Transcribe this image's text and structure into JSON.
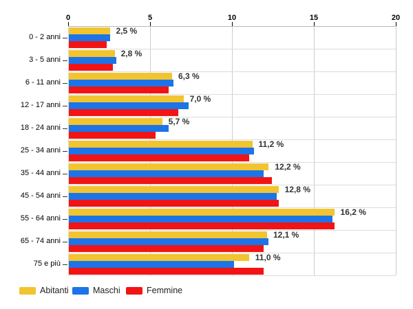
{
  "chart_data": {
    "type": "bar",
    "orientation": "horizontal",
    "title": "",
    "xlabel": "",
    "ylabel": "",
    "categories": [
      "0 - 2 anni",
      "3 - 5 anni",
      "6 - 11 anni",
      "12 - 17 anni",
      "18 - 24 anni",
      "25 - 34 anni",
      "35 - 44 anni",
      "45 - 54 anni",
      "55 - 64 anni",
      "65 - 74 anni",
      "75 e più"
    ],
    "series": [
      {
        "name": "Abitanti",
        "color": "#F2C42F",
        "values": [
          2.5,
          2.8,
          6.3,
          7.0,
          5.7,
          11.2,
          12.2,
          12.8,
          16.2,
          12.1,
          11.0
        ]
      },
      {
        "name": "Maschi",
        "color": "#1C74E8",
        "values": [
          2.5,
          2.9,
          6.4,
          7.3,
          6.1,
          11.3,
          11.9,
          12.7,
          16.1,
          12.2,
          10.1
        ]
      },
      {
        "name": "Femmine",
        "color": "#F21414",
        "values": [
          2.3,
          2.7,
          6.1,
          6.7,
          5.3,
          11.0,
          12.4,
          12.8,
          16.2,
          11.9,
          11.9
        ]
      }
    ],
    "value_labels": [
      "2,5 %",
      "2,8 %",
      "6,3 %",
      "7,0 %",
      "5,7 %",
      "11,2 %",
      "12,2 %",
      "12,8 %",
      "16,2 %",
      "12,1 %",
      "11,0 %"
    ],
    "x_ticks": [
      0,
      5,
      10,
      15,
      20
    ],
    "xlim": [
      0,
      20
    ],
    "grid": true,
    "legend_position": "bottom"
  },
  "colors": {
    "grid": "#CCCCCC",
    "separator": "#DCDCDC",
    "axis_border": "#B8B8B8",
    "axis_text": "#000000",
    "value_label_text": "#333333",
    "background": "#FFFFFF"
  }
}
